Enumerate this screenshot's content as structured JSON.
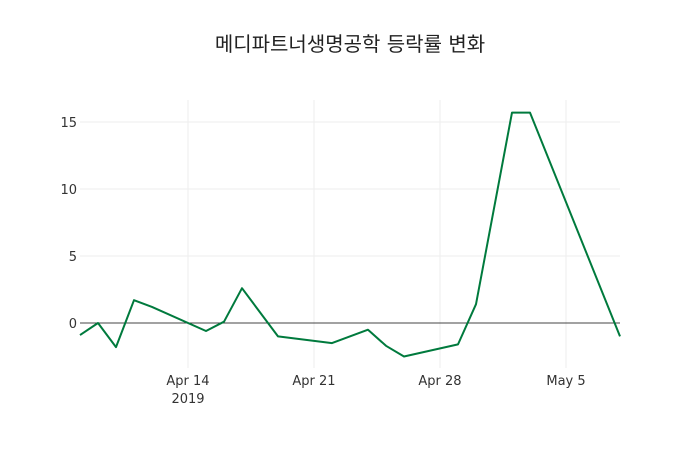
{
  "chart_data": {
    "type": "line",
    "title": "메디파트너생명공학 등락률 변화",
    "xlabel": "",
    "ylabel": "",
    "ylim": [
      -2.9,
      16.8
    ],
    "y_ticks": [
      "0",
      "5",
      "10",
      "15"
    ],
    "x_ticks": [
      "Apr 14",
      "Apr 21",
      "Apr 28",
      "May 5"
    ],
    "x_tick_sub": "2019",
    "grid": true,
    "line_color": "#007a3d",
    "series": [
      {
        "name": "등락률",
        "x": [
          "2019-04-08",
          "2019-04-09",
          "2019-04-10",
          "2019-04-11",
          "2019-04-12",
          "2019-04-15",
          "2019-04-16",
          "2019-04-17",
          "2019-04-19",
          "2019-04-22",
          "2019-04-24",
          "2019-04-25",
          "2019-04-26",
          "2019-04-29",
          "2019-04-30",
          "2019-05-02",
          "2019-05-03",
          "2019-05-08"
        ],
        "values": [
          -0.9,
          0.0,
          -1.8,
          1.7,
          1.2,
          -0.6,
          0.1,
          2.6,
          -1.0,
          -1.5,
          -0.5,
          -1.7,
          -2.5,
          -1.6,
          1.4,
          15.7,
          15.7,
          -1.0
        ]
      }
    ]
  }
}
